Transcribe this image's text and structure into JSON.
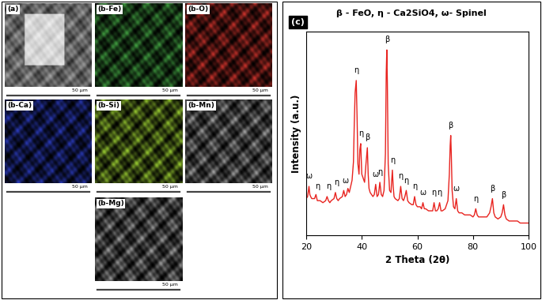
{
  "eds_maps": {
    "panels": [
      {
        "label": "(a)",
        "type": "sem",
        "color": "#b4b4b4",
        "scale_bar": "50 μm"
      },
      {
        "label": "(b-Fe)",
        "type": "map",
        "color": "#3f9a3f",
        "scale_bar": "50 μm"
      },
      {
        "label": "(b-O)",
        "type": "map",
        "color": "#c8322b",
        "scale_bar": "50 μm"
      },
      {
        "label": "(b-Ca)",
        "type": "map",
        "color": "#2a3ab8",
        "scale_bar": "50 μm"
      },
      {
        "label": "(b-Si)",
        "type": "map",
        "color": "#9acd32",
        "scale_bar": "50 μm"
      },
      {
        "label": "(b-Mn)",
        "type": "map",
        "color": "#a0a0a0",
        "scale_bar": "50 μm"
      },
      {
        "label": "(b-Mg)",
        "type": "map",
        "color": "#a0a0a0",
        "scale_bar": "50 μm"
      }
    ]
  },
  "chart_data": {
    "type": "line",
    "title": "β - FeO, η - Ca2SiO4, ω- Spinel",
    "panel_label": "(c)",
    "x_label": "2 Theta (2θ)",
    "y_label": "Intensity (a.u.)",
    "color": "#e8231f",
    "x": [
      20,
      20.5,
      21,
      21.3,
      21.6,
      22,
      23,
      23.5,
      24,
      24.5,
      25,
      26,
      27,
      27.5,
      28,
      28.5,
      29,
      30,
      30.5,
      31,
      31.5,
      32,
      33,
      33.5,
      34,
      34.5,
      35,
      35.5,
      36,
      36.5,
      37,
      37.3,
      37.6,
      38,
      38.3,
      38.6,
      39,
      39.3,
      39.6,
      40,
      40.5,
      41,
      41.5,
      42,
      42.3,
      42.6,
      43,
      43.5,
      44,
      44.5,
      45,
      45.5,
      46,
      46.5,
      47,
      47.5,
      48,
      48.5,
      48.8,
      49,
      49.2,
      49.5,
      50,
      50.5,
      51,
      51.3,
      51.6,
      52,
      53,
      53.5,
      54,
      54.5,
      55,
      55.5,
      56,
      56.5,
      57,
      58,
      58.5,
      59,
      59.5,
      60,
      61,
      61.5,
      62,
      62.5,
      63,
      64,
      65,
      65.5,
      66,
      66.5,
      67,
      67.5,
      68,
      68.5,
      69,
      70,
      71,
      71.5,
      71.8,
      72,
      72.2,
      72.5,
      73,
      73.5,
      74,
      74.5,
      75,
      76,
      77,
      78,
      79,
      80,
      80.5,
      81,
      81.5,
      82,
      83,
      84,
      85,
      86,
      86.5,
      87,
      87.5,
      88,
      89,
      90,
      90.5,
      91,
      91.5,
      92,
      93,
      94,
      95,
      96,
      97,
      98,
      99,
      100
    ],
    "values": [
      18,
      19,
      24,
      20,
      19,
      18,
      18,
      20,
      17,
      17,
      17,
      16,
      17,
      19,
      17,
      16,
      17,
      18,
      21,
      18,
      17,
      18,
      19,
      22,
      19,
      20,
      23,
      21,
      24,
      27,
      36,
      55,
      70,
      76,
      58,
      35,
      30,
      42,
      45,
      30,
      28,
      26,
      35,
      43,
      30,
      23,
      21,
      20,
      19,
      20,
      25,
      19,
      20,
      26,
      20,
      19,
      22,
      40,
      80,
      91,
      75,
      35,
      22,
      21,
      32,
      24,
      19,
      18,
      17,
      18,
      24,
      18,
      17,
      19,
      22,
      17,
      16,
      15,
      15,
      19,
      15,
      14,
      14,
      13,
      16,
      13,
      13,
      12,
      12,
      12,
      16,
      12,
      12,
      13,
      16,
      12,
      12,
      13,
      17,
      30,
      44,
      49,
      40,
      22,
      14,
      13,
      18,
      12,
      11,
      11,
      10,
      10,
      10,
      9,
      10,
      13,
      10,
      9,
      9,
      9,
      9,
      11,
      14,
      18,
      11,
      9,
      8,
      9,
      11,
      15,
      10,
      8,
      7,
      7,
      7,
      7,
      6,
      6,
      6,
      6
    ],
    "xlim": [
      20,
      100
    ],
    "xticks": [
      20,
      40,
      60,
      80,
      100
    ],
    "ylim": [
      0,
      100
    ],
    "tick_labels": "x",
    "annotations": [
      {
        "text": "ω",
        "x": 21,
        "y": 27
      },
      {
        "text": "η",
        "x": 24,
        "y": 22
      },
      {
        "text": "η",
        "x": 28,
        "y": 22
      },
      {
        "text": "η",
        "x": 31,
        "y": 24
      },
      {
        "text": "ω",
        "x": 34,
        "y": 25
      },
      {
        "text": "η",
        "x": 38,
        "y": 79
      },
      {
        "text": "η",
        "x": 39.6,
        "y": 48
      },
      {
        "text": "β",
        "x": 42,
        "y": 46
      },
      {
        "text": "ω",
        "x": 45,
        "y": 28
      },
      {
        "text": "η",
        "x": 46.6,
        "y": 29
      },
      {
        "text": "β",
        "x": 49,
        "y": 94
      },
      {
        "text": "η",
        "x": 51,
        "y": 35
      },
      {
        "text": "η",
        "x": 54,
        "y": 27
      },
      {
        "text": "η",
        "x": 56,
        "y": 25
      },
      {
        "text": "η",
        "x": 59,
        "y": 22
      },
      {
        "text": "ω",
        "x": 62,
        "y": 19
      },
      {
        "text": "η",
        "x": 66,
        "y": 19
      },
      {
        "text": "η",
        "x": 68,
        "y": 19
      },
      {
        "text": "β",
        "x": 72,
        "y": 52
      },
      {
        "text": "ω",
        "x": 74,
        "y": 21
      },
      {
        "text": "η",
        "x": 81,
        "y": 16
      },
      {
        "text": "β",
        "x": 87,
        "y": 21
      },
      {
        "text": "β",
        "x": 91,
        "y": 18
      }
    ]
  }
}
